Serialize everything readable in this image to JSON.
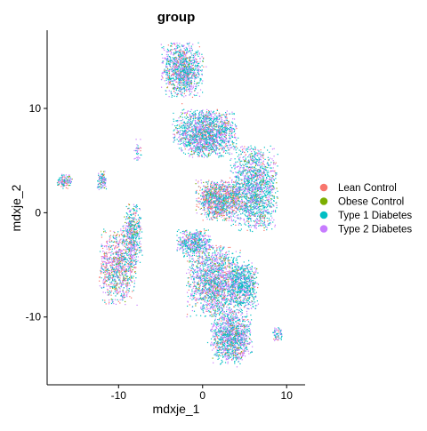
{
  "chart_data": {
    "type": "scatter",
    "title": "group",
    "xlabel": "mdxje_1",
    "ylabel": "mdxje_2",
    "xlim": [
      -18.5,
      12.2
    ],
    "ylim": [
      -16.5,
      17.5
    ],
    "x_ticks": [
      -10,
      0,
      10
    ],
    "y_ticks": [
      -10,
      0,
      10
    ],
    "x_tick_labels": [
      "-10",
      "0",
      "10"
    ],
    "y_tick_labels": [
      "-10",
      "0",
      "10"
    ],
    "grid": false,
    "legend_position": "right",
    "legend_title": "",
    "series": [
      {
        "name": "Lean Control",
        "color": "#F8766D"
      },
      {
        "name": "Obese Control",
        "color": "#7CAE00"
      },
      {
        "name": "Type 1 Diabetes",
        "color": "#00BFC4"
      },
      {
        "name": "Type 2 Diabetes",
        "color": "#C77CFF"
      }
    ],
    "clusters": [
      {
        "center": [
          -2.4,
          13.7
        ],
        "spread": [
          2.2,
          2.3
        ],
        "mix": [
          0.1,
          0.04,
          0.45,
          0.41
        ]
      },
      {
        "center": [
          0.3,
          7.6
        ],
        "spread": [
          3.3,
          2.0
        ],
        "mix": [
          0.1,
          0.04,
          0.45,
          0.41
        ]
      },
      {
        "center": [
          6.1,
          2.3
        ],
        "spread": [
          2.5,
          3.6
        ],
        "mix": [
          0.09,
          0.04,
          0.52,
          0.35
        ]
      },
      {
        "center": [
          1.9,
          1.2
        ],
        "spread": [
          2.4,
          1.7
        ],
        "mix": [
          0.24,
          0.07,
          0.35,
          0.34
        ]
      },
      {
        "center": [
          -1.0,
          -2.9
        ],
        "spread": [
          1.8,
          1.2
        ],
        "mix": [
          0.1,
          0.04,
          0.48,
          0.38
        ]
      },
      {
        "center": [
          1.4,
          -6.6
        ],
        "spread": [
          2.9,
          3.0
        ],
        "mix": [
          0.13,
          0.05,
          0.4,
          0.42
        ]
      },
      {
        "center": [
          4.8,
          -7.0
        ],
        "spread": [
          1.6,
          2.1
        ],
        "mix": [
          0.07,
          0.03,
          0.58,
          0.32
        ]
      },
      {
        "center": [
          3.4,
          -11.9
        ],
        "spread": [
          2.2,
          2.3
        ],
        "mix": [
          0.1,
          0.04,
          0.45,
          0.41
        ]
      },
      {
        "center": [
          -10.0,
          -5.2
        ],
        "spread": [
          2.0,
          3.2
        ],
        "mix": [
          0.22,
          0.08,
          0.32,
          0.38
        ]
      },
      {
        "center": [
          -8.3,
          -2.0
        ],
        "spread": [
          1.0,
          2.6
        ],
        "mix": [
          0.15,
          0.07,
          0.43,
          0.35
        ]
      },
      {
        "center": [
          -16.4,
          3.0
        ],
        "spread": [
          0.8,
          0.6
        ],
        "mix": [
          0.2,
          0.08,
          0.35,
          0.37
        ]
      },
      {
        "center": [
          -12.0,
          3.1
        ],
        "spread": [
          0.5,
          0.8
        ],
        "mix": [
          0.15,
          0.06,
          0.4,
          0.39
        ]
      },
      {
        "center": [
          -7.7,
          5.8
        ],
        "spread": [
          0.5,
          1.1
        ],
        "mix": [
          0.15,
          0.05,
          0.4,
          0.4
        ]
      },
      {
        "center": [
          9.0,
          -11.7
        ],
        "spread": [
          0.6,
          0.6
        ],
        "mix": [
          0.1,
          0.04,
          0.45,
          0.41
        ]
      }
    ],
    "points_per_cluster": [
      1100,
      1700,
      1600,
      1100,
      500,
      1600,
      700,
      1200,
      900,
      450,
      120,
      110,
      35,
      60
    ]
  }
}
